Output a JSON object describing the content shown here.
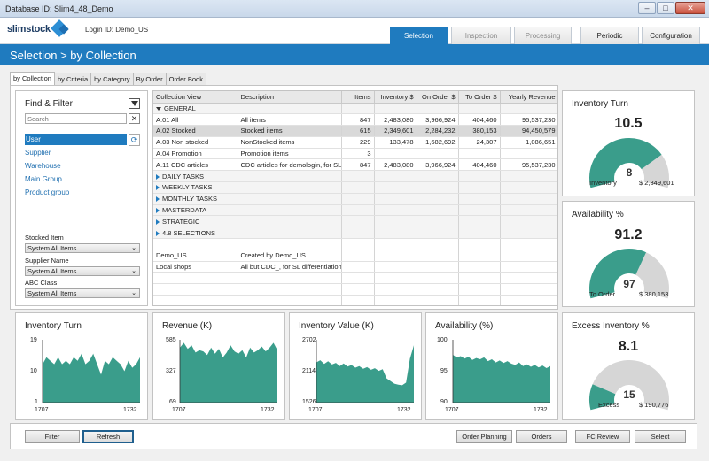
{
  "window": {
    "title": "Database ID: Slim4_48_Demo",
    "buttons": [
      "–",
      "□",
      "✕"
    ]
  },
  "header": {
    "logo_text": "slimstock",
    "login": "Login ID: Demo_US",
    "nav": [
      {
        "label": "Selection",
        "state": "active"
      },
      {
        "label": "Inspection",
        "state": "disabled"
      },
      {
        "label": "Processing",
        "state": "disabled"
      },
      {
        "label": "Periodic",
        "state": "enabled"
      },
      {
        "label": "Configuration",
        "state": "enabled"
      }
    ]
  },
  "breadcrumb": "Selection > by Collection",
  "subtabs": [
    "by Collection",
    "by Criteria",
    "by Category",
    "By Order",
    "Order Book"
  ],
  "filter": {
    "title": "Find & Filter",
    "search_placeholder": "Search",
    "items": [
      "User",
      "Supplier",
      "Warehouse",
      "Main Group",
      "Product group"
    ],
    "dropdowns": [
      {
        "label": "Stocked Item",
        "value": "System All Items"
      },
      {
        "label": "Supplier Name",
        "value": "System All Items"
      },
      {
        "label": "ABC Class",
        "value": "System All Items"
      }
    ]
  },
  "grid": {
    "columns": [
      "Collection View",
      "Description",
      "Items",
      "Inventory $",
      "On Order $",
      "To Order $",
      "Yearly Revenue"
    ],
    "rows": [
      {
        "kind": "group-open",
        "cells": [
          "GENERAL",
          "",
          "",
          "",
          "",
          "",
          ""
        ]
      },
      {
        "kind": "row",
        "cells": [
          "A.01 All",
          "All items",
          "847",
          "2,483,080",
          "3,966,924",
          "404,460",
          "95,537,230"
        ]
      },
      {
        "kind": "selected",
        "cells": [
          "A.02 Stocked",
          "Stocked items",
          "615",
          "2,349,601",
          "2,284,232",
          "380,153",
          "94,450,579"
        ]
      },
      {
        "kind": "row",
        "cells": [
          "A.03 Non stocked",
          "NonStocked items",
          "229",
          "133,478",
          "1,682,692",
          "24,307",
          "1,086,651"
        ]
      },
      {
        "kind": "row",
        "cells": [
          "A.04 Promotion",
          "Promotion items",
          "3",
          "",
          "",
          "",
          ""
        ]
      },
      {
        "kind": "row",
        "cells": [
          "A.11 CDC articles",
          "CDC articles for demologin, for SL",
          "847",
          "2,483,080",
          "3,966,924",
          "404,460",
          "95,537,230"
        ]
      },
      {
        "kind": "group",
        "cells": [
          "DAILY TASKS",
          "",
          "",
          "",
          "",
          "",
          ""
        ]
      },
      {
        "kind": "group",
        "cells": [
          "WEEKLY TASKS",
          "",
          "",
          "",
          "",
          "",
          ""
        ]
      },
      {
        "kind": "group",
        "cells": [
          "MONTHLY TASKS",
          "",
          "",
          "",
          "",
          "",
          ""
        ]
      },
      {
        "kind": "group",
        "cells": [
          "MASTERDATA",
          "",
          "",
          "",
          "",
          "",
          ""
        ]
      },
      {
        "kind": "group",
        "cells": [
          "STRATEGIC",
          "",
          "",
          "",
          "",
          "",
          ""
        ]
      },
      {
        "kind": "group",
        "cells": [
          "4.8 SELECTIONS",
          "",
          "",
          "",
          "",
          "",
          ""
        ]
      },
      {
        "kind": "blank",
        "cells": [
          "",
          "",
          "",
          "",
          "",
          "",
          ""
        ]
      },
      {
        "kind": "row",
        "cells": [
          "Demo_US",
          "Created by Demo_US",
          "",
          "",
          "",
          "",
          ""
        ]
      },
      {
        "kind": "row",
        "cells": [
          "Local shops",
          "All but CDC_, for SL differentiation",
          "",
          "",
          "",
          "",
          ""
        ]
      },
      {
        "kind": "blank",
        "cells": [
          "",
          "",
          "",
          "",
          "",
          "",
          ""
        ]
      },
      {
        "kind": "blank",
        "cells": [
          "",
          "",
          "",
          "",
          "",
          "",
          ""
        ]
      },
      {
        "kind": "blank",
        "cells": [
          "",
          "",
          "",
          "",
          "",
          "",
          ""
        ]
      }
    ]
  },
  "kpis": [
    {
      "title": "Inventory Turn",
      "big": "10.5",
      "small": "8",
      "fraction": 0.76,
      "left_label": "Inventory",
      "right_label": "$ 2,349,601"
    },
    {
      "title": "Availability %",
      "big": "91.2",
      "small": "97",
      "fraction": 0.62,
      "left_label": "To Order",
      "right_label": "$ 380,153"
    },
    {
      "title": "Excess Inventory %",
      "big": "8.1",
      "small": "15",
      "fraction": 0.18,
      "left_label": "Excess",
      "right_label": "$ 190,776"
    }
  ],
  "colors": {
    "accent": "#1f7bbf",
    "chart_fill": "#3a9d8b",
    "gauge_grey": "#d6d6d6"
  },
  "chart_data": [
    {
      "type": "area",
      "title": "Inventory Turn",
      "ylim": [
        1,
        19
      ],
      "y_ticks": [
        "19",
        "10",
        "1"
      ],
      "x_ticks": [
        "1707",
        "1732"
      ],
      "values": [
        12,
        14,
        13,
        12,
        14,
        12,
        13,
        12,
        14,
        13,
        15,
        12,
        13,
        15,
        12,
        9,
        13,
        12,
        14,
        13,
        12,
        10,
        13,
        11,
        12,
        14
      ]
    },
    {
      "type": "area",
      "title": "Revenue (K)",
      "ylim": [
        69,
        585
      ],
      "y_ticks": [
        "585",
        "327",
        "69"
      ],
      "x_ticks": [
        "1707",
        "1732"
      ],
      "values": [
        520,
        560,
        510,
        540,
        480,
        500,
        490,
        460,
        520,
        470,
        510,
        440,
        480,
        540,
        490,
        470,
        500,
        440,
        520,
        480,
        500,
        530,
        490,
        520,
        560,
        500
      ]
    },
    {
      "type": "area",
      "title": "Inventory Value (K)",
      "ylim": [
        1526,
        2702
      ],
      "y_ticks": [
        "2702",
        "2114",
        "1526"
      ],
      "x_ticks": [
        "1707",
        "1732"
      ],
      "values": [
        2280,
        2320,
        2250,
        2300,
        2240,
        2270,
        2210,
        2260,
        2200,
        2230,
        2180,
        2210,
        2160,
        2190,
        2140,
        2170,
        2120,
        2150,
        1980,
        1930,
        1880,
        1860,
        1850,
        1900,
        2350,
        2600
      ]
    },
    {
      "type": "area",
      "title": "Availability (%)",
      "ylim": [
        90,
        100
      ],
      "y_ticks": [
        "100",
        "95",
        "90"
      ],
      "x_ticks": [
        "1707",
        "1732"
      ],
      "values": [
        97.6,
        97.2,
        97.4,
        97.0,
        97.3,
        96.8,
        97.1,
        96.9,
        97.2,
        96.6,
        96.9,
        96.4,
        96.7,
        96.3,
        96.6,
        96.2,
        96.0,
        96.4,
        95.8,
        96.1,
        95.7,
        96.0,
        95.6,
        95.9,
        95.5,
        95.8
      ]
    }
  ],
  "buttons": {
    "left": [
      "Filter",
      "Refresh"
    ],
    "right": [
      "Order Planning",
      "Orders",
      "FC Review",
      "Select"
    ]
  }
}
